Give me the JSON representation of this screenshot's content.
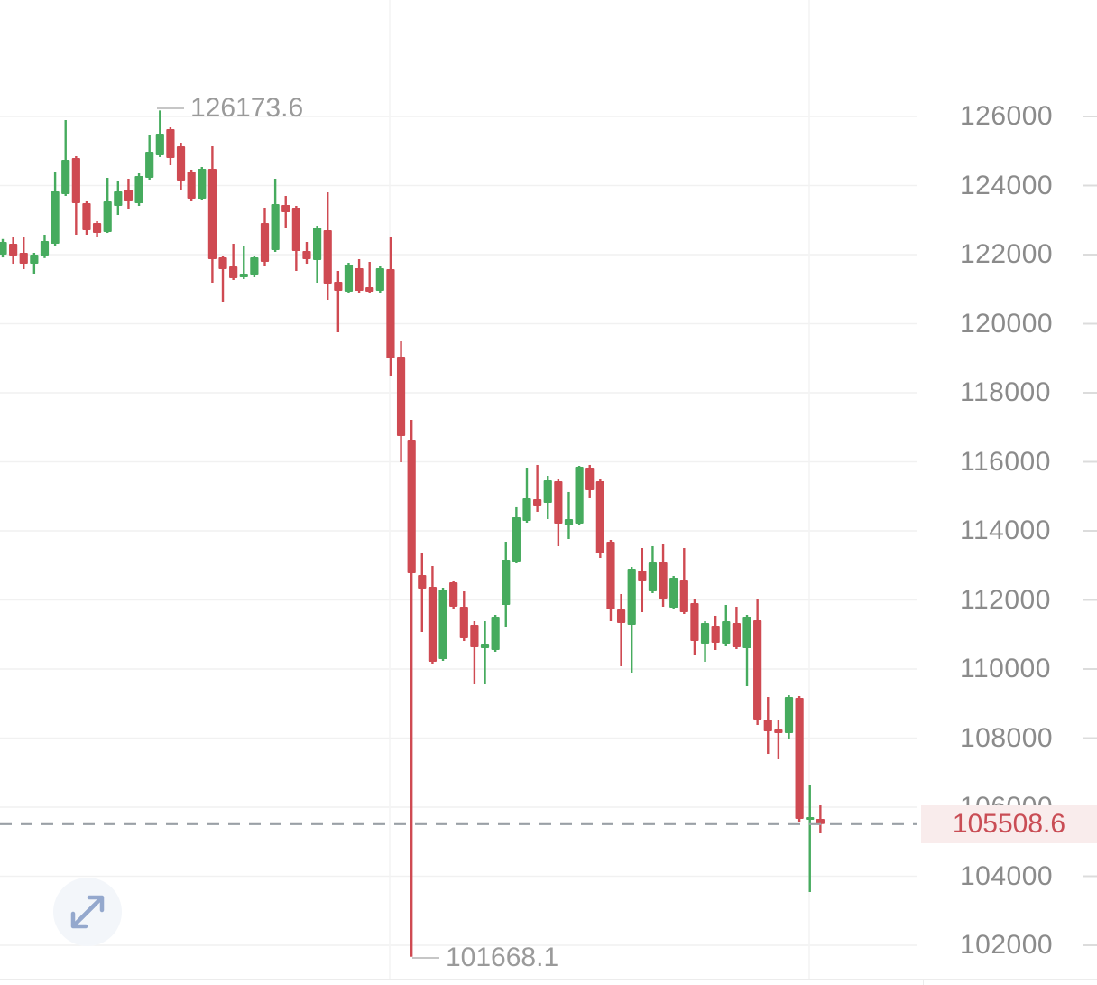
{
  "chart_data": {
    "type": "candlestick",
    "title": "",
    "high_annotation": "126173.6",
    "low_annotation": "101668.1",
    "current_price": 105508.6,
    "current_price_label": "105508.6",
    "high": 126173.6,
    "low": 101668.1,
    "y_axis": {
      "ticks": [
        126000,
        124000,
        122000,
        120000,
        118000,
        116000,
        114000,
        112000,
        110000,
        108000,
        106000,
        104000,
        102000
      ],
      "tick_labels": [
        "126000",
        "124000",
        "122000",
        "120000",
        "118000",
        "116000",
        "114000",
        "112000",
        "110000",
        "108000",
        "106000",
        "104000",
        "102000"
      ],
      "position": "right",
      "range": [
        101000,
        126600
      ]
    },
    "grid": "horizontal",
    "colors": {
      "up": "#46ab5e",
      "down": "#cf4a52",
      "grid_line": "#f1f1f1",
      "session_line": "#f3f3f3",
      "axis_text": "#8b8b8b",
      "tick_mark": "#dcdcdc",
      "dashed_line": "#9aa0a6",
      "price_tag_bg": "#f9ecec",
      "price_tag_text": "#c94d55",
      "annotation_text": "#9a9a9a",
      "expand_icon": "#94a8cd",
      "expand_bg": "#f3f6fa"
    },
    "session_separators_x": [
      432,
      897
    ],
    "candles": [
      [
        122000,
        122450,
        121920,
        122366
      ],
      [
        122314,
        122523,
        121738,
        121974
      ],
      [
        122052,
        122497,
        121582,
        121738
      ],
      [
        121738,
        122052,
        121451,
        122000
      ],
      [
        121974,
        122575,
        121900,
        122392
      ],
      [
        122314,
        124405,
        122261,
        123830
      ],
      [
        123752,
        125895,
        123699,
        124745
      ],
      [
        124797,
        124850,
        122575,
        123490
      ],
      [
        123490,
        123543,
        122575,
        122706
      ],
      [
        122915,
        122967,
        122497,
        122627
      ],
      [
        122654,
        124222,
        122627,
        123543
      ],
      [
        123412,
        124144,
        123150,
        123830
      ],
      [
        123882,
        124196,
        123307,
        123543
      ],
      [
        123490,
        124353,
        123412,
        124275
      ],
      [
        124222,
        125451,
        124170,
        124980
      ],
      [
        124876,
        126173.6,
        124824,
        125504
      ],
      [
        125634,
        125686,
        124588,
        124797
      ],
      [
        125137,
        125242,
        123882,
        124144
      ],
      [
        124405,
        124458,
        123543,
        123621
      ],
      [
        123621,
        124536,
        123569,
        124484
      ],
      [
        124484,
        125137,
        121189,
        121869
      ],
      [
        121921,
        121974,
        120615,
        121582
      ],
      [
        121660,
        122314,
        121268,
        121320
      ],
      [
        121346,
        122261,
        121294,
        121425
      ],
      [
        121399,
        121974,
        121346,
        121921
      ],
      [
        122915,
        123359,
        121660,
        121791
      ],
      [
        122131,
        124196,
        122078,
        123464
      ],
      [
        123438,
        123699,
        122784,
        123229
      ],
      [
        123359,
        123412,
        121530,
        122105
      ],
      [
        122105,
        122366,
        121738,
        121869
      ],
      [
        121843,
        122836,
        121189,
        122784
      ],
      [
        122706,
        123804,
        120693,
        121137
      ],
      [
        121215,
        121530,
        119752,
        120954
      ],
      [
        120928,
        121765,
        120876,
        121712
      ],
      [
        121608,
        121869,
        120876,
        120954
      ],
      [
        121059,
        121791,
        120876,
        120928
      ],
      [
        120954,
        121660,
        120902,
        121608
      ],
      [
        121582,
        122523,
        118471,
        118994
      ],
      [
        119046,
        119490,
        115987,
        116745
      ],
      [
        116641,
        117216,
        101668.1,
        112771
      ],
      [
        112719,
        113347,
        111073,
        112327
      ],
      [
        112379,
        112980,
        110157,
        110209
      ],
      [
        110287,
        112353,
        110235,
        112300
      ],
      [
        112510,
        112562,
        111752,
        111804
      ],
      [
        111804,
        112248,
        110810,
        110889
      ],
      [
        111281,
        111386,
        109555,
        110627
      ],
      [
        110601,
        111386,
        109555,
        110732
      ],
      [
        110549,
        111569,
        110497,
        111516
      ],
      [
        111856,
        113687,
        111203,
        113164
      ],
      [
        113112,
        114681,
        113059,
        114393
      ],
      [
        114288,
        115830,
        114236,
        114942
      ],
      [
        114916,
        115909,
        114550,
        114733
      ],
      [
        114811,
        115595,
        114340,
        115465
      ],
      [
        115439,
        115491,
        113556,
        114209
      ],
      [
        114157,
        115125,
        113765,
        114340
      ],
      [
        114209,
        115882,
        114183,
        115857
      ],
      [
        115830,
        115909,
        114942,
        115177
      ],
      [
        115439,
        115491,
        113216,
        113347
      ],
      [
        113687,
        113739,
        111386,
        111726
      ],
      [
        111726,
        112170,
        110078,
        111334
      ],
      [
        111281,
        112954,
        109895,
        112902
      ],
      [
        112849,
        113504,
        111647,
        112562
      ],
      [
        112248,
        113556,
        112196,
        113085
      ],
      [
        113085,
        113608,
        111804,
        112039
      ],
      [
        111778,
        112693,
        111726,
        112640
      ],
      [
        112588,
        113504,
        111595,
        111647
      ],
      [
        111908,
        112039,
        110418,
        110810
      ],
      [
        110732,
        111386,
        110209,
        111334
      ],
      [
        111255,
        111543,
        110549,
        110758
      ],
      [
        110732,
        111856,
        110680,
        111386
      ],
      [
        111334,
        111804,
        110575,
        110627
      ],
      [
        110601,
        111569,
        109503,
        111516
      ],
      [
        111412,
        112039,
        108379,
        108536
      ],
      [
        108536,
        109189,
        107542,
        108196
      ],
      [
        108248,
        108536,
        107386,
        108143
      ],
      [
        108143,
        109241,
        107987,
        109189
      ],
      [
        109163,
        109215,
        105582,
        105660
      ],
      [
        105634,
        106627,
        103542,
        105712
      ],
      [
        105660,
        106052,
        105242,
        105508.6
      ]
    ]
  },
  "controls": {
    "expand_button": "expand-arrows"
  }
}
